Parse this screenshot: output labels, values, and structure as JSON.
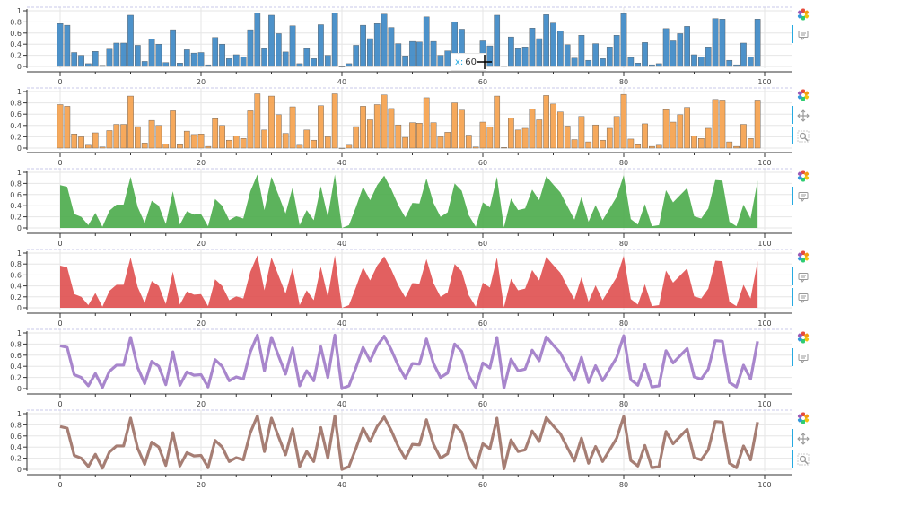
{
  "tooltip": {
    "key": "x:",
    "value": "60"
  },
  "tools": {
    "logo": "bokeh-logo-icon",
    "hover": "hover-tooltip-icon",
    "pan": "pan-move-icon",
    "zoom": "box-zoom-icon"
  },
  "chart_data": [
    {
      "type": "bar",
      "color": "#3a86c4",
      "xlim": [
        0,
        100
      ],
      "ylim": [
        0,
        1
      ],
      "xticks": [
        "0",
        "20",
        "40",
        "60",
        "80",
        "100"
      ],
      "yticks": [
        "0",
        "0.2",
        "0.4",
        "0.6",
        "0.8",
        "1"
      ],
      "series_ref": "values"
    },
    {
      "type": "bar",
      "color": "#f5a04a",
      "xlim": [
        0,
        100
      ],
      "ylim": [
        0,
        1
      ],
      "xticks": [
        "0",
        "20",
        "40",
        "60",
        "80",
        "100"
      ],
      "yticks": [
        "0",
        "0.2",
        "0.4",
        "0.6",
        "0.8",
        "1"
      ],
      "series_ref": "values"
    },
    {
      "type": "area",
      "color": "#4aab4a",
      "xlim": [
        0,
        100
      ],
      "ylim": [
        0,
        1
      ],
      "xticks": [
        "0",
        "20",
        "40",
        "60",
        "80",
        "100"
      ],
      "yticks": [
        "0",
        "0.2",
        "0.4",
        "0.6",
        "0.8",
        "1"
      ],
      "series_ref": "values"
    },
    {
      "type": "area",
      "color": "#df4f4f",
      "xlim": [
        0,
        100
      ],
      "ylim": [
        0,
        1
      ],
      "xticks": [
        "0",
        "20",
        "40",
        "60",
        "80",
        "100"
      ],
      "yticks": [
        "0",
        "0.2",
        "0.4",
        "0.6",
        "0.8",
        "1"
      ],
      "series_ref": "values"
    },
    {
      "type": "line",
      "color": "#a886cc",
      "xlim": [
        0,
        100
      ],
      "ylim": [
        0,
        1
      ],
      "xticks": [
        "0",
        "20",
        "40",
        "60",
        "80",
        "100"
      ],
      "yticks": [
        "0",
        "0.2",
        "0.4",
        "0.6",
        "0.8",
        "1"
      ],
      "series_ref": "values"
    },
    {
      "type": "line",
      "color": "#a67e74",
      "xlim": [
        0,
        100
      ],
      "ylim": [
        0,
        1
      ],
      "xticks": [
        "0",
        "20",
        "40",
        "60",
        "80",
        "100"
      ],
      "yticks": [
        "0",
        "0.2",
        "0.4",
        "0.6",
        "0.8",
        "1"
      ],
      "series_ref": "values"
    }
  ],
  "values": [
    0.77,
    0.74,
    0.25,
    0.2,
    0.05,
    0.27,
    0.02,
    0.31,
    0.42,
    0.42,
    0.92,
    0.38,
    0.09,
    0.49,
    0.4,
    0.07,
    0.66,
    0.06,
    0.3,
    0.24,
    0.25,
    0.03,
    0.52,
    0.4,
    0.14,
    0.21,
    0.17,
    0.66,
    0.96,
    0.32,
    0.92,
    0.59,
    0.26,
    0.73,
    0.05,
    0.32,
    0.14,
    0.75,
    0.2,
    0.96,
    0.0,
    0.05,
    0.38,
    0.74,
    0.5,
    0.77,
    0.94,
    0.7,
    0.41,
    0.19,
    0.45,
    0.44,
    0.89,
    0.45,
    0.2,
    0.28,
    0.8,
    0.67,
    0.23,
    0.02,
    0.46,
    0.37,
    0.92,
    0.01,
    0.53,
    0.32,
    0.35,
    0.69,
    0.5,
    0.93,
    0.78,
    0.64,
    0.39,
    0.15,
    0.56,
    0.11,
    0.41,
    0.14,
    0.35,
    0.56,
    0.95,
    0.16,
    0.06,
    0.43,
    0.03,
    0.05,
    0.68,
    0.46,
    0.59,
    0.72,
    0.21,
    0.17,
    0.35,
    0.86,
    0.85,
    0.11,
    0.03,
    0.42,
    0.17,
    0.85
  ]
}
